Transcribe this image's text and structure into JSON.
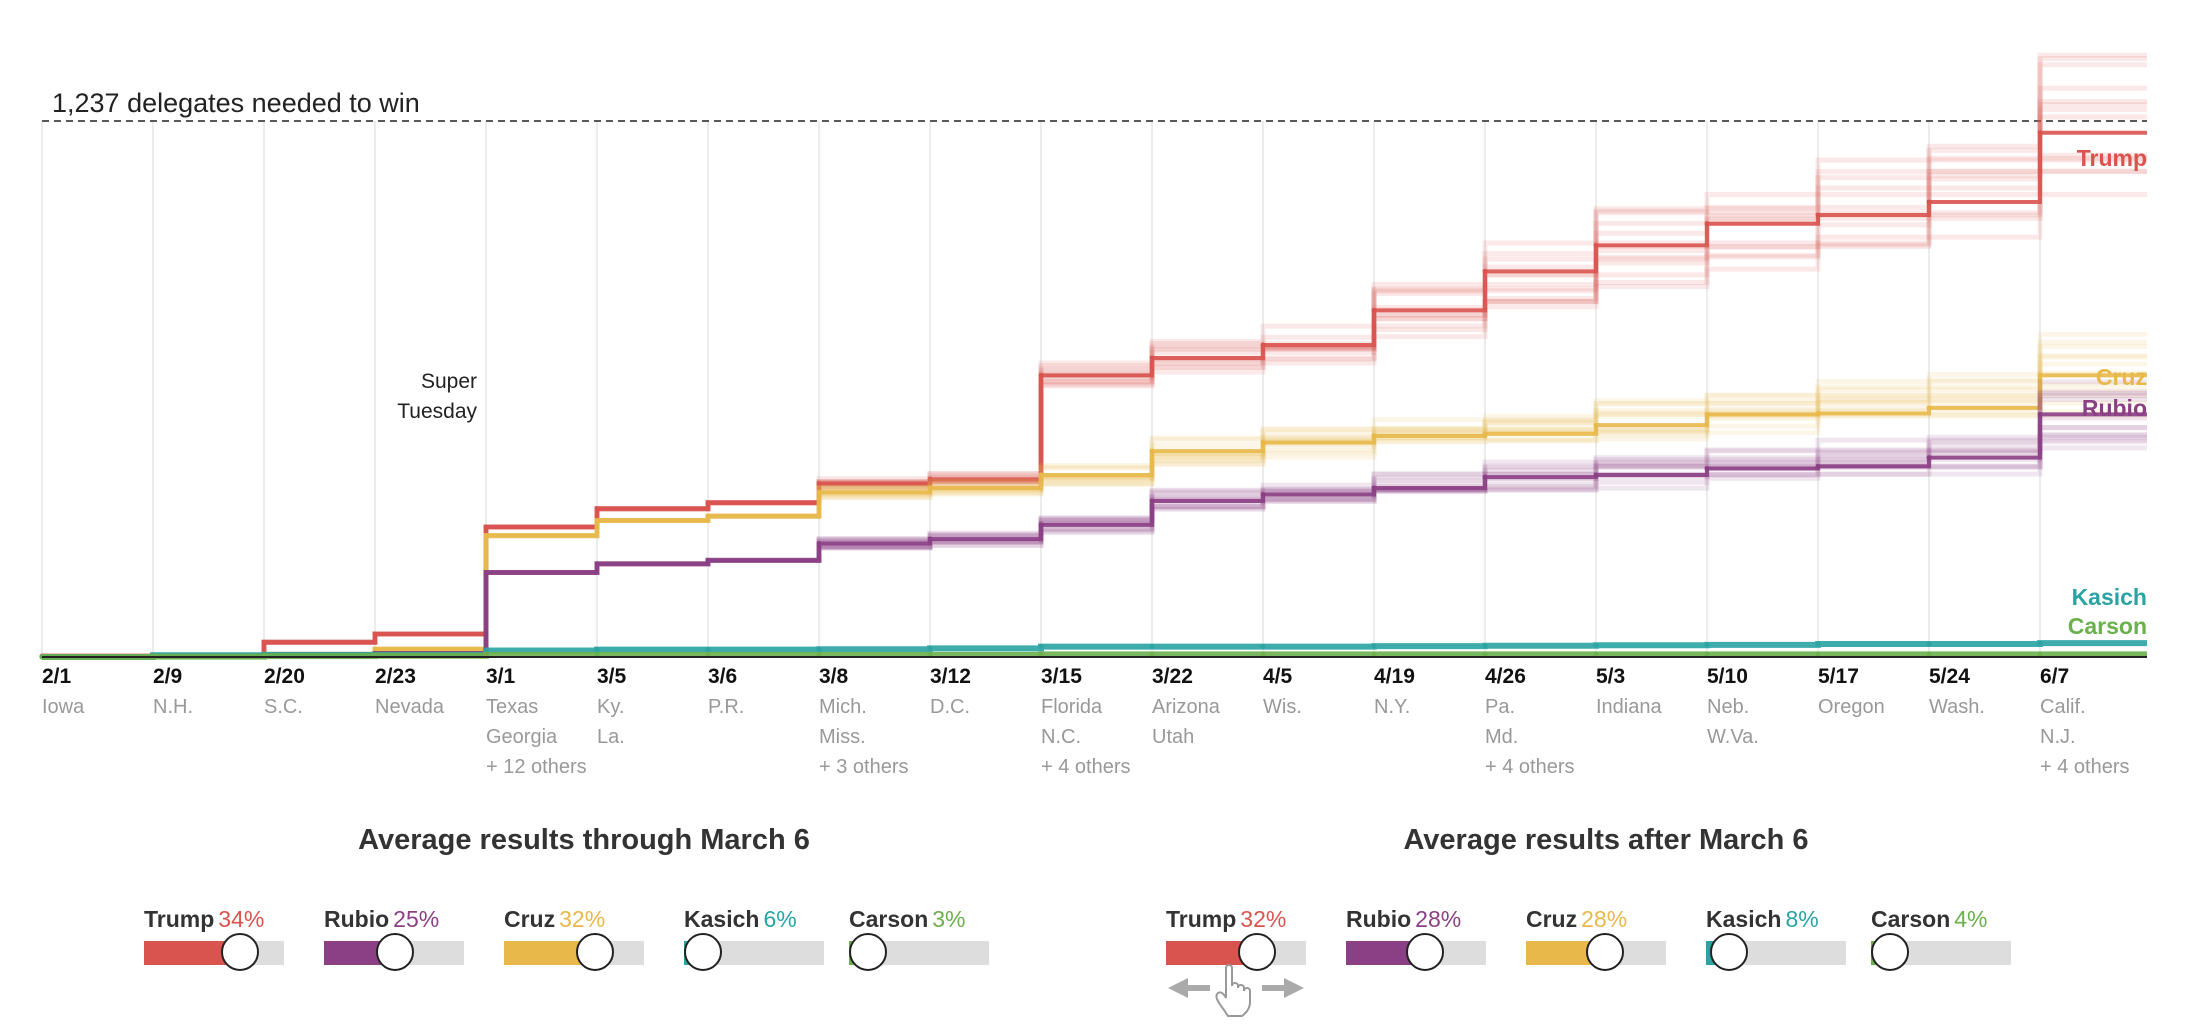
{
  "chart_data": {
    "type": "line",
    "title": "",
    "threshold": {
      "value": 1237,
      "label": "1,237 delegates needed to win"
    },
    "annotation": {
      "lines": [
        "Super",
        "Tuesday"
      ],
      "at_date": "3/1"
    },
    "ylim": [
      0,
      1237
    ],
    "x": [
      {
        "date": "2/1",
        "states": [
          "Iowa"
        ]
      },
      {
        "date": "2/9",
        "states": [
          "N.H."
        ]
      },
      {
        "date": "2/20",
        "states": [
          "S.C."
        ]
      },
      {
        "date": "2/23",
        "states": [
          "Nevada"
        ]
      },
      {
        "date": "3/1",
        "states": [
          "Texas",
          "Georgia",
          "+ 12 others"
        ]
      },
      {
        "date": "3/5",
        "states": [
          "Ky.",
          "La."
        ]
      },
      {
        "date": "3/6",
        "states": [
          "P.R."
        ]
      },
      {
        "date": "3/8",
        "states": [
          "Mich.",
          "Miss.",
          "+ 3 others"
        ]
      },
      {
        "date": "3/12",
        "states": [
          "D.C."
        ]
      },
      {
        "date": "3/15",
        "states": [
          "Florida",
          "N.C.",
          "+ 4 others"
        ]
      },
      {
        "date": "3/22",
        "states": [
          "Arizona",
          "Utah"
        ]
      },
      {
        "date": "4/5",
        "states": [
          "Wis."
        ]
      },
      {
        "date": "4/19",
        "states": [
          "N.Y."
        ]
      },
      {
        "date": "4/26",
        "states": [
          "Pa.",
          "Md.",
          "+ 4 others"
        ]
      },
      {
        "date": "5/3",
        "states": [
          "Indiana"
        ]
      },
      {
        "date": "5/10",
        "states": [
          "Neb.",
          "W.Va."
        ]
      },
      {
        "date": "5/17",
        "states": [
          "Oregon"
        ]
      },
      {
        "date": "5/24",
        "states": [
          "Wash."
        ]
      },
      {
        "date": "6/7",
        "states": [
          "Calif.",
          "N.J.",
          "+ 4 others"
        ]
      }
    ],
    "series": [
      {
        "name": "Trump",
        "color": "#d9534f",
        "values": [
          2,
          4,
          34,
          53,
          300,
          342,
          356,
          400,
          410,
          650,
          690,
          720,
          800,
          890,
          950,
          1000,
          1020,
          1050,
          1210
        ]
      },
      {
        "name": "Cruz",
        "color": "#e8b84a",
        "values": [
          1,
          3,
          6,
          18,
          280,
          315,
          325,
          380,
          390,
          420,
          475,
          495,
          510,
          515,
          535,
          560,
          562,
          575,
          650
        ]
      },
      {
        "name": "Rubio",
        "color": "#8b3f85",
        "values": [
          1,
          2,
          4,
          8,
          195,
          215,
          223,
          262,
          272,
          305,
          360,
          375,
          390,
          415,
          420,
          435,
          440,
          460,
          560
        ]
      },
      {
        "name": "Kasich",
        "color": "#2aa3a3",
        "values": [
          0,
          4,
          5,
          5,
          15,
          17,
          17,
          18,
          20,
          24,
          24,
          24,
          25,
          26,
          27,
          28,
          30,
          30,
          32
        ]
      },
      {
        "name": "Carson",
        "color": "#6ab04c",
        "values": [
          0,
          1,
          2,
          3,
          5,
          5,
          5,
          5,
          5,
          6,
          6,
          6,
          6,
          6,
          6,
          6,
          6,
          6,
          6
        ]
      }
    ],
    "projection_start": "3/8"
  },
  "panels": [
    {
      "title": "Average results through March 6",
      "candidates": [
        {
          "name": "Trump",
          "pct": "34%",
          "value": 0.34,
          "color": "#d9534f"
        },
        {
          "name": "Rubio",
          "pct": "25%",
          "value": 0.25,
          "color": "#8b3f85"
        },
        {
          "name": "Cruz",
          "pct": "32%",
          "value": 0.32,
          "color": "#e8b84a"
        },
        {
          "name": "Kasich",
          "pct": "6%",
          "value": 0.06,
          "color": "#2aa3a3"
        },
        {
          "name": "Carson",
          "pct": "3%",
          "value": 0.03,
          "color": "#6ab04c"
        }
      ]
    },
    {
      "title": "Average results after March 6",
      "candidates": [
        {
          "name": "Trump",
          "pct": "32%",
          "value": 0.32,
          "color": "#d9534f"
        },
        {
          "name": "Rubio",
          "pct": "28%",
          "value": 0.28,
          "color": "#8b3f85"
        },
        {
          "name": "Cruz",
          "pct": "28%",
          "value": 0.28,
          "color": "#e8b84a"
        },
        {
          "name": "Kasich",
          "pct": "8%",
          "value": 0.08,
          "color": "#2aa3a3"
        },
        {
          "name": "Carson",
          "pct": "4%",
          "value": 0.04,
          "color": "#6ab04c"
        }
      ]
    }
  ],
  "drag_hint_icon": "hand-pointer-icon"
}
